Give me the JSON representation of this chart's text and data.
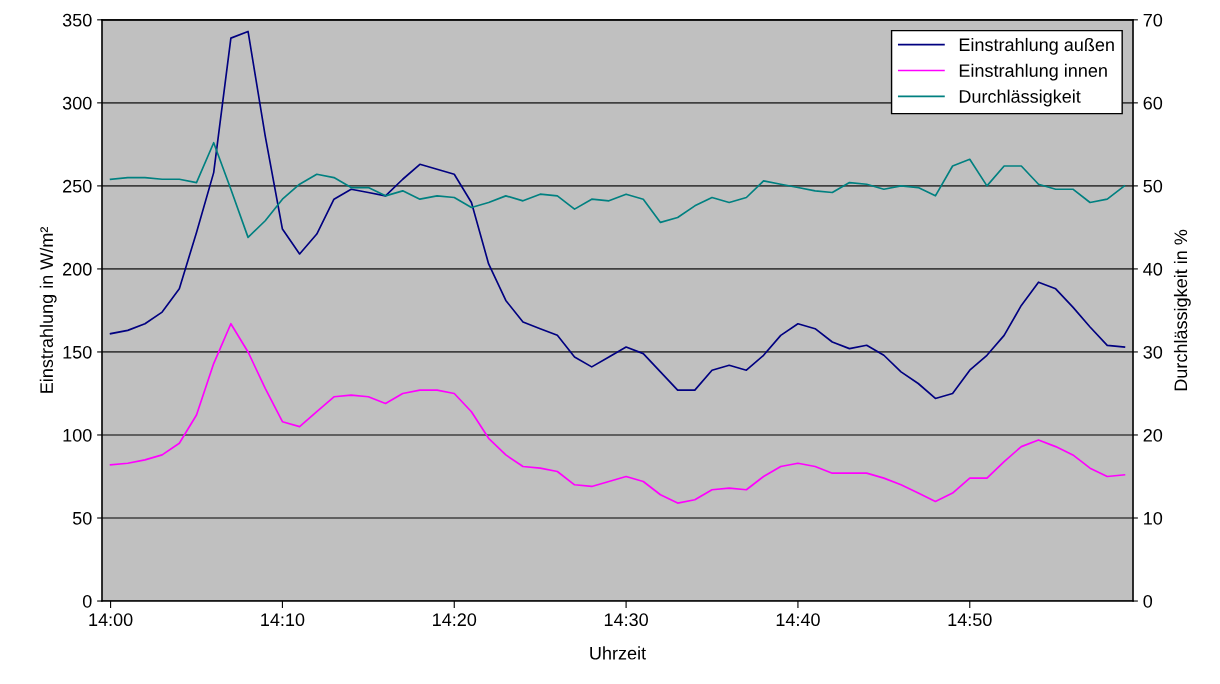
{
  "chart_data": {
    "type": "line",
    "xlabel": "Uhrzeit",
    "ylabel": "Einstrahlung in W/m²",
    "y2label": "Durchlässigkeit in %",
    "categories": [
      "14:00",
      null,
      null,
      null,
      null,
      null,
      null,
      null,
      null,
      null,
      "14:10",
      null,
      null,
      null,
      null,
      null,
      null,
      null,
      null,
      null,
      "14:20",
      null,
      null,
      null,
      null,
      null,
      null,
      null,
      null,
      null,
      "14:30",
      null,
      null,
      null,
      null,
      null,
      null,
      null,
      null,
      null,
      "14:40",
      null,
      null,
      null,
      null,
      null,
      null,
      null,
      null,
      null,
      "14:50",
      null,
      null,
      null,
      null,
      null,
      null,
      null,
      null,
      null
    ],
    "series": [
      {
        "name": "Einstrahlung außen",
        "color": "#000080",
        "values": [
          161,
          163,
          167,
          174,
          188,
          222,
          258,
          339,
          343,
          280,
          224,
          209,
          221,
          242,
          248,
          246,
          244,
          254,
          263,
          260,
          257,
          240,
          203,
          181,
          168,
          164,
          160,
          147,
          141,
          147,
          153,
          149,
          138,
          127,
          127,
          139,
          142,
          139,
          148,
          160,
          167,
          164,
          156,
          152,
          154,
          148,
          138,
          131,
          122,
          125,
          139,
          148,
          160,
          178,
          192,
          188,
          177,
          165,
          154,
          153
        ]
      },
      {
        "name": "Einstrahlung innen",
        "color": "#ff00ff",
        "values": [
          82,
          83,
          85,
          88,
          95,
          112,
          143,
          167,
          150,
          128,
          108,
          105,
          114,
          123,
          124,
          123,
          119,
          125,
          127,
          127,
          125,
          114,
          98,
          88,
          81,
          80,
          78,
          70,
          69,
          72,
          75,
          72,
          64,
          59,
          61,
          67,
          68,
          67,
          75,
          81,
          83,
          81,
          77,
          77,
          77,
          74,
          70,
          65,
          60,
          65,
          74,
          74,
          84,
          93,
          97,
          93,
          88,
          80,
          75,
          76
        ]
      },
      {
        "name": "Durchlässigkeit",
        "color": "#008080",
        "axis": "y2",
        "values": [
          50.8,
          51,
          51,
          50.8,
          50.8,
          50.4,
          55.2,
          49.6,
          43.8,
          45.8,
          48.4,
          50.2,
          51.4,
          51,
          49.8,
          49.8,
          48.8,
          49.4,
          48.4,
          48.8,
          48.6,
          47.4,
          48,
          48.8,
          48.2,
          49,
          48.8,
          47.2,
          48.4,
          48.2,
          49,
          48.4,
          45.6,
          46.2,
          47.6,
          48.6,
          48,
          48.6,
          50.6,
          50.2,
          49.8,
          49.4,
          49.2,
          50.4,
          50.2,
          49.6,
          50,
          49.8,
          48.8,
          52.4,
          53.2,
          50,
          52.4,
          52.4,
          50.2,
          49.6,
          49.6,
          48,
          48.4,
          50
        ]
      }
    ],
    "ylim": [
      0,
      350
    ],
    "yticks": [
      0,
      50,
      100,
      150,
      200,
      250,
      300,
      350
    ],
    "y2lim": [
      0,
      70
    ],
    "y2ticks": [
      0,
      10,
      20,
      30,
      40,
      50,
      60,
      70
    ],
    "grid": "y",
    "legend": "top right",
    "marker": "none",
    "line_style": "solid"
  }
}
